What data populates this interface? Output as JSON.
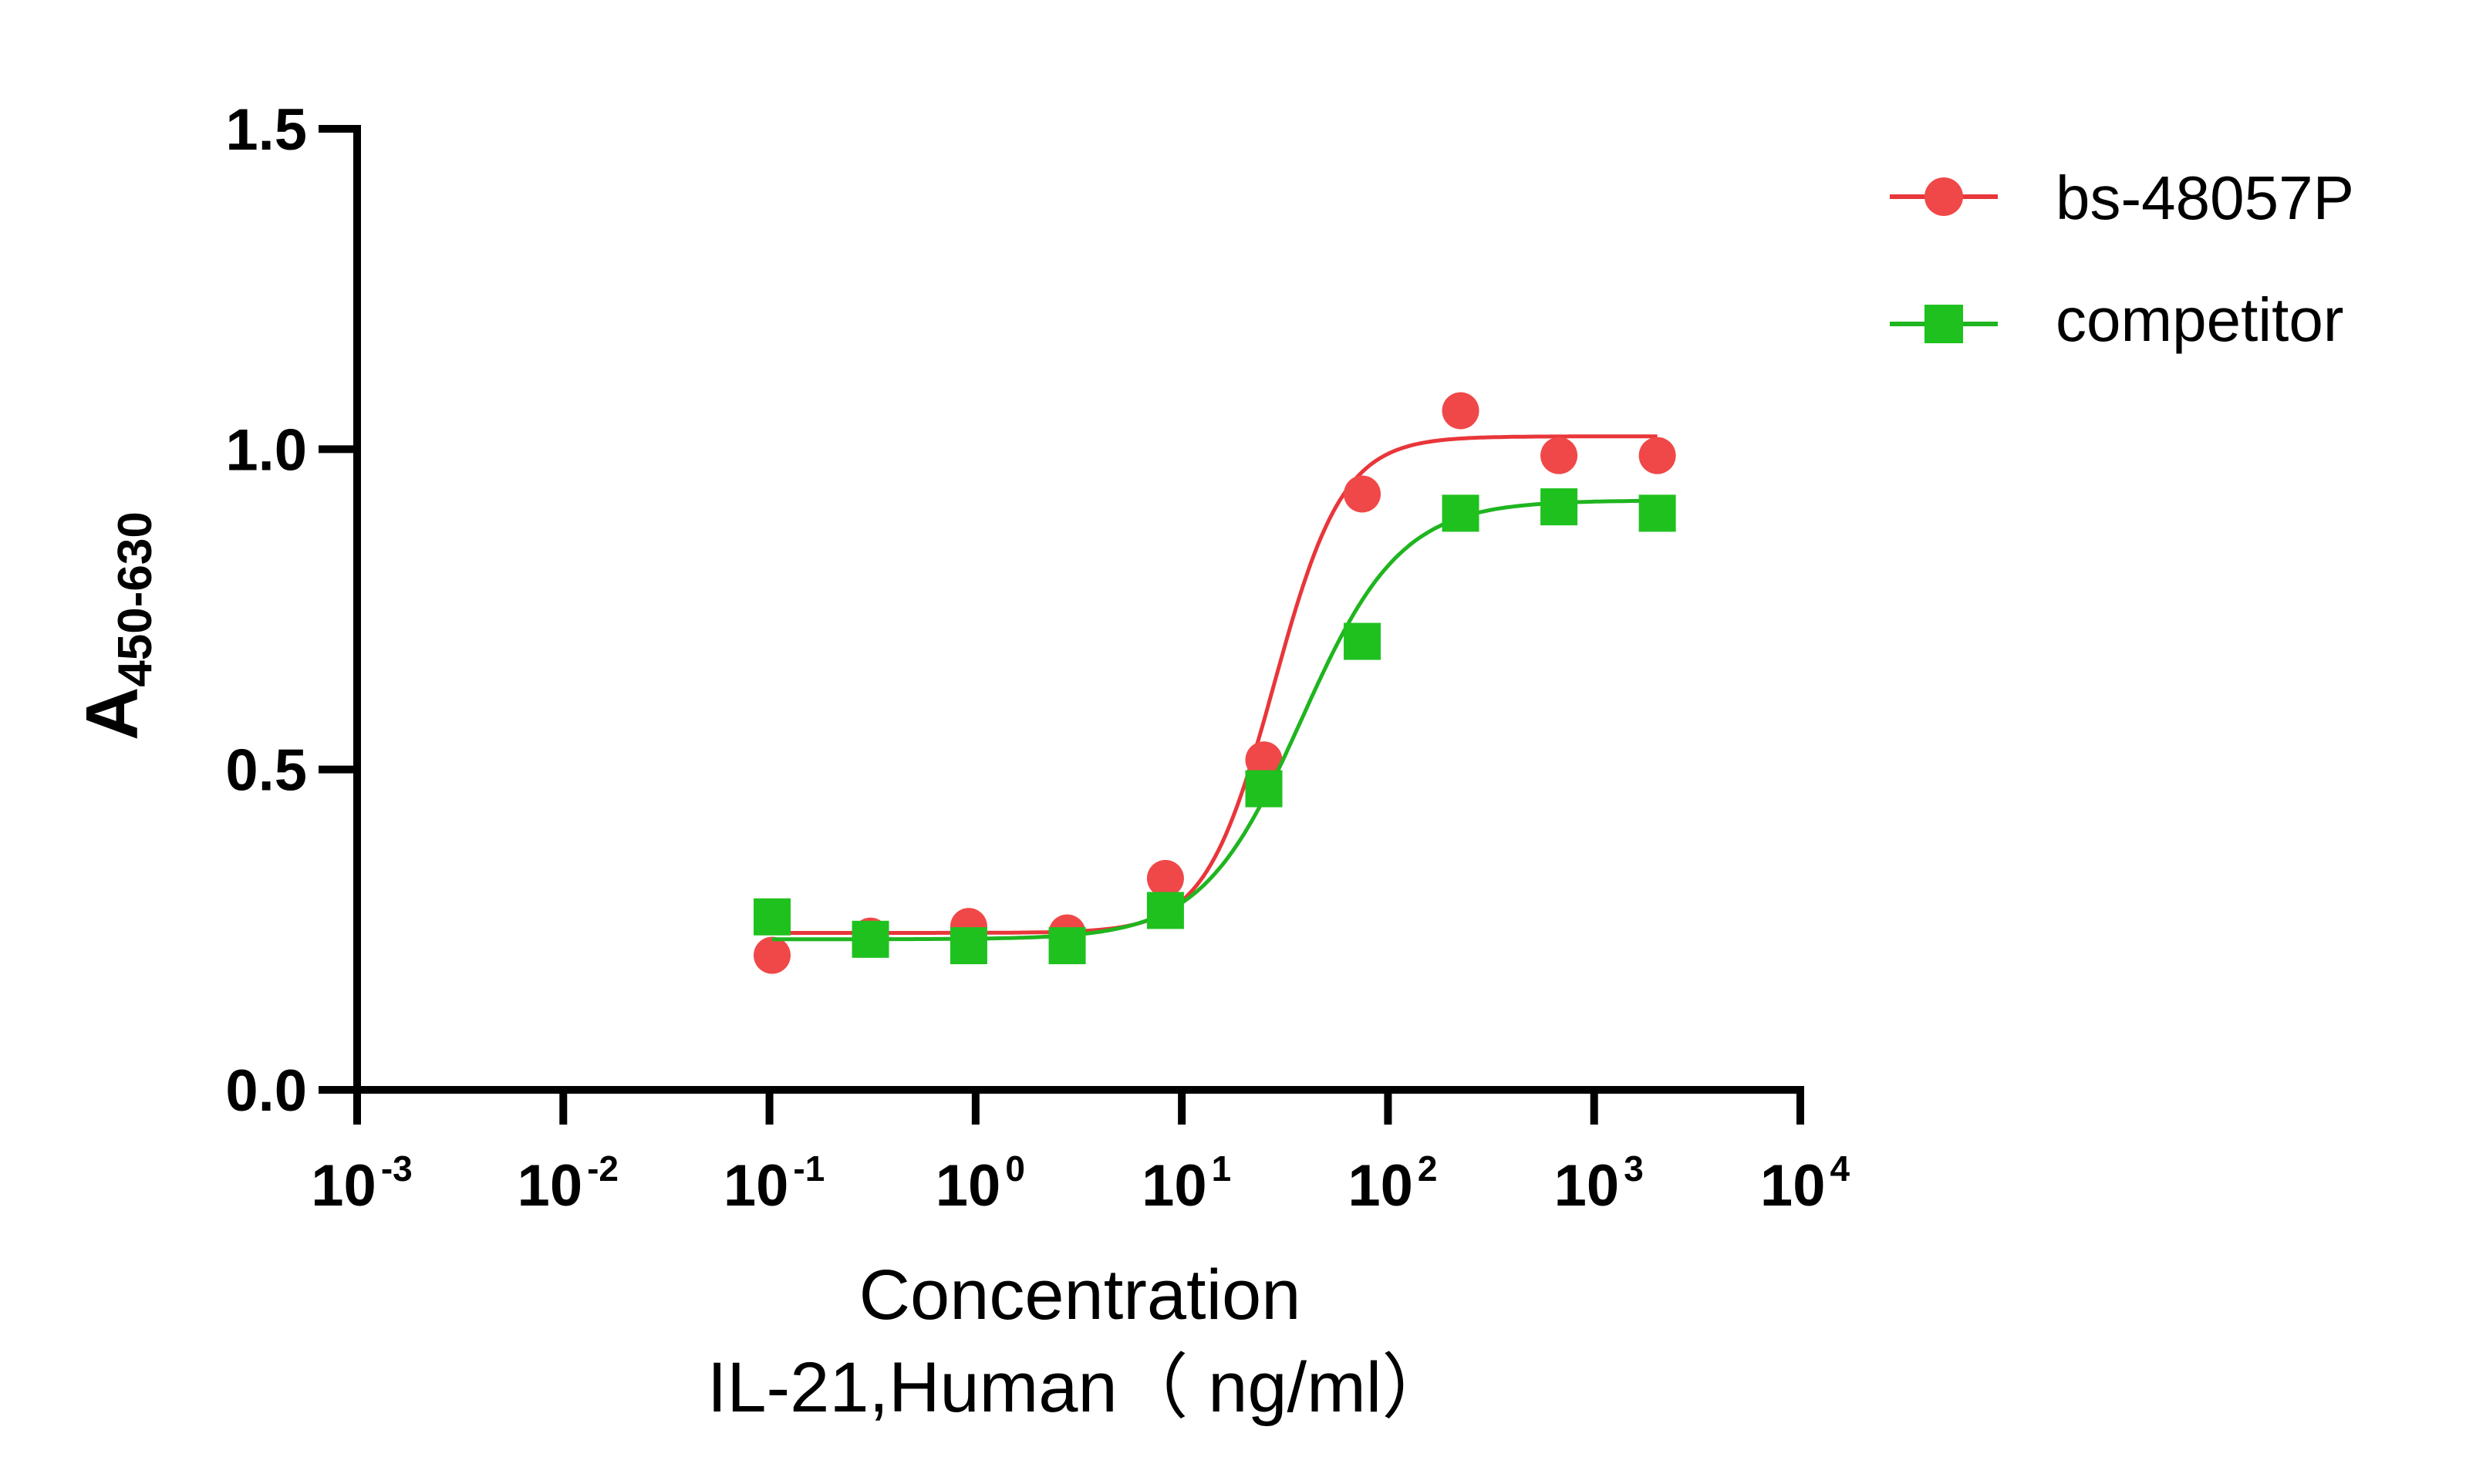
{
  "chart_data": {
    "type": "scatter",
    "xscale": "log",
    "ylabel": {
      "main": "A",
      "sub": "450-630"
    },
    "xlabel_line1": "Concentration",
    "xlabel_line2": "IL-21,Human（ ng/ml）",
    "xlim": [
      0.001,
      10000
    ],
    "ylim": [
      0,
      1.5
    ],
    "yticks": [
      {
        "value": 0.0,
        "label": "0.0"
      },
      {
        "value": 0.5,
        "label": "0.5"
      },
      {
        "value": 1.0,
        "label": "1.0"
      },
      {
        "value": 1.5,
        "label": "1.5"
      }
    ],
    "xticks": [
      {
        "value": 0.001,
        "base": "10",
        "exp": "-3"
      },
      {
        "value": 0.01,
        "base": "10",
        "exp": "-2"
      },
      {
        "value": 0.1,
        "base": "10",
        "exp": "-1"
      },
      {
        "value": 1,
        "base": "10",
        "exp": "0"
      },
      {
        "value": 10,
        "base": "10",
        "exp": "1"
      },
      {
        "value": 100,
        "base": "10",
        "exp": "2"
      },
      {
        "value": 1000,
        "base": "10",
        "exp": "3"
      },
      {
        "value": 10000,
        "base": "10",
        "exp": "4"
      }
    ],
    "grid": false,
    "legend_position": "top-right",
    "series": [
      {
        "name": "bs-48057P",
        "marker": "circle",
        "color": "#e8363a",
        "x": [
          0.103,
          0.309,
          0.926,
          2.78,
          8.33,
          25.0,
          75.0,
          225,
          675,
          2025
        ],
        "y": [
          0.21,
          0.24,
          0.255,
          0.245,
          0.33,
          0.515,
          0.93,
          1.06,
          0.99,
          0.99
        ],
        "fit": {
          "bottom": 0.245,
          "top": 1.02,
          "ec50": 28,
          "hill": 2.6
        }
      },
      {
        "name": "competitor",
        "marker": "square",
        "color": "#1fb51f",
        "x": [
          0.103,
          0.309,
          0.926,
          2.78,
          8.33,
          25.0,
          75.0,
          225,
          675,
          2025
        ],
        "y": [
          0.27,
          0.235,
          0.225,
          0.225,
          0.28,
          0.47,
          0.7,
          0.9,
          0.91,
          0.9
        ],
        "fit": {
          "bottom": 0.235,
          "top": 0.92,
          "ec50": 38,
          "hill": 1.8
        }
      }
    ]
  }
}
